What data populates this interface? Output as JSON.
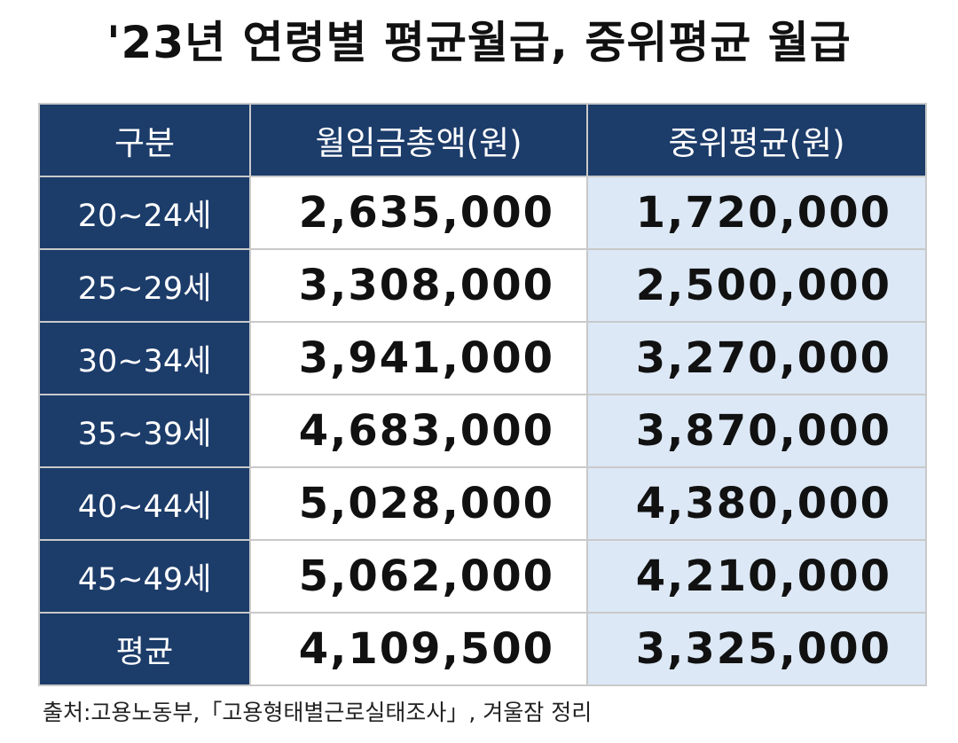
{
  "title": "'23년 연령별 평균월급, 중위평균 월급",
  "table": {
    "headers": [
      "구분",
      "월임금총액(원)",
      "중위평균(원)"
    ],
    "rows": [
      {
        "category": "20~24세",
        "total": "2,635,000",
        "median": "1,720,000"
      },
      {
        "category": "25~29세",
        "total": "3,308,000",
        "median": "2,500,000"
      },
      {
        "category": "30~34세",
        "total": "3,941,000",
        "median": "3,270,000"
      },
      {
        "category": "35~39세",
        "total": "4,683,000",
        "median": "3,870,000"
      },
      {
        "category": "40~44세",
        "total": "5,028,000",
        "median": "4,380,000"
      },
      {
        "category": "45~49세",
        "total": "5,062,000",
        "median": "4,210,000"
      },
      {
        "category": "평균",
        "total": "4,109,500",
        "median": "3,325,000"
      }
    ]
  },
  "source": "출처:고용노동부,「고용형태별근로실태조사」, 겨울잠 정리",
  "colors": {
    "header_bg": "#1c3c6a",
    "median_bg": "#dce8f6",
    "text": "#111111"
  }
}
